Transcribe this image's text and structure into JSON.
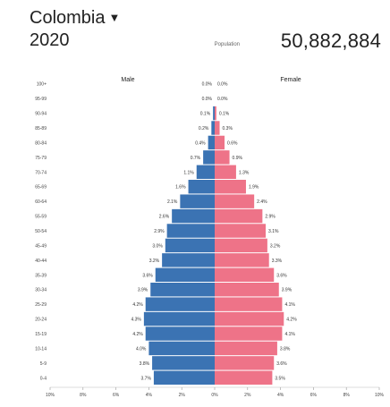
{
  "header": {
    "country": "Colombia",
    "year": "2020",
    "population_label": "Population",
    "population_value": "50,882,884"
  },
  "colors": {
    "male": "#3b73b3",
    "female": "#ee7388"
  },
  "chart_data": {
    "type": "bar",
    "orientation": "horizontal-butterfly",
    "legend": [
      "Male",
      "Female"
    ],
    "categories": [
      "100+",
      "95-99",
      "90-94",
      "85-89",
      "80-84",
      "75-79",
      "70-74",
      "65-69",
      "60-64",
      "55-59",
      "50-54",
      "45-49",
      "40-44",
      "35-39",
      "30-34",
      "25-29",
      "20-24",
      "15-19",
      "10-14",
      "5-9",
      "0-4"
    ],
    "series": [
      {
        "name": "Male",
        "values": [
          0.0,
          0.0,
          0.1,
          0.2,
          0.4,
          0.7,
          1.1,
          1.6,
          2.1,
          2.6,
          2.9,
          3.0,
          3.2,
          3.6,
          3.9,
          4.2,
          4.3,
          4.2,
          4.0,
          3.8,
          3.7
        ],
        "value_labels": [
          "0.0%",
          "0.0%",
          "0.1%",
          "0.2%",
          "0.4%",
          "0.7%",
          "1.1%",
          "1.6%",
          "2.1%",
          "2.6%",
          "2.9%",
          "3.0%",
          "3.2%",
          "3.6%",
          "3.9%",
          "4.2%",
          "4.3%",
          "4.2%",
          "4.0%",
          "3.8%",
          "3.7%"
        ]
      },
      {
        "name": "Female",
        "values": [
          0.0,
          0.0,
          0.1,
          0.3,
          0.6,
          0.9,
          1.3,
          1.9,
          2.4,
          2.9,
          3.1,
          3.2,
          3.3,
          3.6,
          3.9,
          4.1,
          4.2,
          4.1,
          3.8,
          3.6,
          3.5
        ],
        "value_labels": [
          "0.0%",
          "0.0%",
          "0.1%",
          "0.3%",
          "0.6%",
          "0.9%",
          "1.3%",
          "1.9%",
          "2.4%",
          "2.9%",
          "3.1%",
          "3.2%",
          "3.3%",
          "3.6%",
          "3.9%",
          "4.1%",
          "4.2%",
          "4.1%",
          "3.8%",
          "3.6%",
          "3.5%"
        ]
      }
    ],
    "x_ticks": [
      "10%",
      "8%",
      "6%",
      "4%",
      "2%",
      "0%",
      "2%",
      "4%",
      "6%",
      "8%",
      "10%"
    ],
    "xlim": [
      -10,
      10
    ],
    "grid": false
  }
}
